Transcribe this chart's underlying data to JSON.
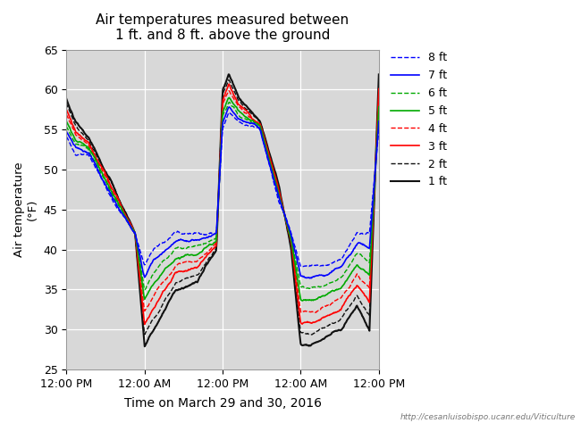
{
  "title": "Air temperatures measured between\n1 ft. and 8 ft. above the ground",
  "xlabel": "Time on March 29 and 30, 2016",
  "ylabel": "Air temperature\n(°F)",
  "ylim": [
    25,
    65
  ],
  "yticks": [
    25,
    30,
    35,
    40,
    45,
    50,
    55,
    60,
    65
  ],
  "xtick_labels": [
    "12:00 PM",
    "12:00 AM",
    "12:00 PM",
    "12:00 AM",
    "12:00 PM"
  ],
  "xtick_positions": [
    0.0,
    0.25,
    0.5,
    0.75,
    1.0
  ],
  "watermark": "http://cesanluisobispo.ucanr.edu/Viticulture",
  "series": [
    {
      "label": "8 ft",
      "color": "#0000FF",
      "linestyle": "dashed",
      "linewidth": 1.0,
      "ft": 8
    },
    {
      "label": "7 ft",
      "color": "#0000FF",
      "linestyle": "solid",
      "linewidth": 1.2,
      "ft": 7
    },
    {
      "label": "6 ft",
      "color": "#00AA00",
      "linestyle": "dashed",
      "linewidth": 1.0,
      "ft": 6
    },
    {
      "label": "5 ft",
      "color": "#00AA00",
      "linestyle": "solid",
      "linewidth": 1.2,
      "ft": 5
    },
    {
      "label": "4 ft",
      "color": "#FF0000",
      "linestyle": "dashed",
      "linewidth": 1.0,
      "ft": 4
    },
    {
      "label": "3 ft",
      "color": "#FF0000",
      "linestyle": "solid",
      "linewidth": 1.2,
      "ft": 3
    },
    {
      "label": "2 ft",
      "color": "#111111",
      "linestyle": "dashed",
      "linewidth": 1.0,
      "ft": 2
    },
    {
      "label": "1 ft",
      "color": "#111111",
      "linestyle": "solid",
      "linewidth": 1.5,
      "ft": 1
    }
  ],
  "background_color": "#D8D8D8",
  "grid_color": "#FFFFFF",
  "key_times_1ft": [
    0.0,
    0.03,
    0.07,
    0.15,
    0.22,
    0.25,
    0.28,
    0.35,
    0.42,
    0.48,
    0.5,
    0.52,
    0.55,
    0.62,
    0.68,
    0.72,
    0.75,
    0.78,
    0.83,
    0.88,
    0.93,
    0.97,
    1.0
  ],
  "key_vals_1ft": [
    59,
    56,
    54,
    48,
    42,
    28,
    30,
    35,
    36,
    40,
    60,
    62,
    59,
    56,
    48,
    40,
    28,
    28,
    29,
    30,
    33,
    30,
    62
  ],
  "key_times_8ft": [
    0.0,
    0.03,
    0.07,
    0.15,
    0.22,
    0.25,
    0.28,
    0.35,
    0.42,
    0.48,
    0.5,
    0.52,
    0.55,
    0.62,
    0.68,
    0.72,
    0.75,
    0.78,
    0.83,
    0.88,
    0.93,
    0.97,
    1.0
  ],
  "key_vals_8ft": [
    54,
    52,
    52,
    46,
    42,
    38,
    40,
    42,
    42,
    42,
    55,
    57,
    56,
    55,
    46,
    42,
    38,
    38,
    38,
    39,
    42,
    42,
    55
  ],
  "n_points": 600
}
